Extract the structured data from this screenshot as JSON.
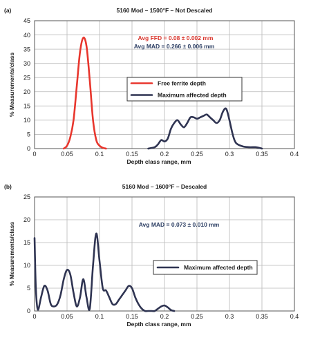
{
  "chart_data": [
    {
      "panel": "(a)",
      "type": "line",
      "title": "5160 Mod – 1500°F – Not Descaled",
      "xlabel": "Depth class range, mm",
      "ylabel": "% Measurements/class",
      "xlim": [
        0,
        0.4
      ],
      "ylim": [
        0,
        45
      ],
      "xticks": [
        "0",
        "0.05",
        "0.1",
        "0.15",
        "0.2",
        "0.25",
        "0.3",
        "0.35",
        "0.4"
      ],
      "yticks": [
        "0",
        "5",
        "10",
        "15",
        "20",
        "25",
        "30",
        "35",
        "40",
        "45"
      ],
      "grid": true,
      "annotations": [
        {
          "text": "Avg FFD = 0.08 ± 0.002 mm",
          "color": "#d9342b"
        },
        {
          "text": "Avg MAD = 0.266 ± 0.006 mm",
          "color": "#2c3e63"
        }
      ],
      "legend_position": "center-right",
      "series": [
        {
          "name": "Free ferrite depth",
          "color": "#e8362d",
          "x": [
            0.045,
            0.05,
            0.055,
            0.06,
            0.065,
            0.07,
            0.075,
            0.08,
            0.085,
            0.09,
            0.095,
            0.1,
            0.105,
            0.11
          ],
          "y": [
            0,
            1,
            4,
            10,
            22,
            34,
            39,
            36,
            24,
            10,
            3,
            1,
            0.3,
            0
          ]
        },
        {
          "name": "Maximum affected depth",
          "color": "#2f3452",
          "x": [
            0.175,
            0.185,
            0.19,
            0.195,
            0.2,
            0.205,
            0.21,
            0.215,
            0.22,
            0.225,
            0.23,
            0.235,
            0.24,
            0.245,
            0.25,
            0.255,
            0.26,
            0.265,
            0.27,
            0.275,
            0.28,
            0.285,
            0.29,
            0.295,
            0.3,
            0.305,
            0.31,
            0.32,
            0.33,
            0.34,
            0.345,
            0.35
          ],
          "y": [
            0,
            0.5,
            1.5,
            3,
            2.5,
            3.5,
            7,
            9,
            10,
            8.5,
            7.5,
            9,
            11,
            11,
            10.5,
            11,
            11.5,
            12,
            11,
            10,
            9,
            10,
            13,
            14,
            10,
            5,
            2,
            0.8,
            0.5,
            0.5,
            0.3,
            0
          ]
        }
      ]
    },
    {
      "panel": "(b)",
      "type": "line",
      "title": "5160 Mod – 1600°F – Descaled",
      "xlabel": "Depth class range, mm",
      "ylabel": "% Measurements/class",
      "xlim": [
        0,
        0.4
      ],
      "ylim": [
        0,
        25
      ],
      "xticks": [
        "0",
        "0.05",
        "0.1",
        "0.15",
        "0.2",
        "0.25",
        "0.3",
        "0.35",
        "0.4"
      ],
      "yticks": [
        "0",
        "5",
        "10",
        "15",
        "20",
        "25"
      ],
      "grid": true,
      "annotations": [
        {
          "text": "Avg MAD = 0.073 ± 0.010 mm",
          "color": "#2c3e63"
        }
      ],
      "legend_position": "center-right",
      "series": [
        {
          "name": "Maximum affected depth",
          "color": "#2f3452",
          "x": [
            0.0,
            0.002,
            0.005,
            0.01,
            0.015,
            0.02,
            0.025,
            0.03,
            0.035,
            0.04,
            0.045,
            0.05,
            0.055,
            0.06,
            0.065,
            0.07,
            0.075,
            0.08,
            0.085,
            0.09,
            0.095,
            0.1,
            0.105,
            0.11,
            0.115,
            0.12,
            0.125,
            0.13,
            0.135,
            0.14,
            0.145,
            0.15,
            0.155,
            0.16,
            0.165,
            0.17,
            0.175,
            0.18,
            0.185,
            0.19,
            0.195,
            0.2,
            0.205,
            0.21,
            0.215
          ],
          "y": [
            16,
            5,
            0.3,
            3,
            5.5,
            4.5,
            1.5,
            1.0,
            1.5,
            3.5,
            7,
            9,
            8,
            4,
            1,
            3,
            7,
            3,
            0.5,
            10,
            17,
            11,
            5,
            4.5,
            3,
            1.5,
            1.5,
            2.5,
            3.5,
            4.5,
            5.5,
            5,
            3,
            1.5,
            0.5,
            0,
            0,
            0,
            0,
            0.5,
            1,
            1.2,
            0.8,
            0.2,
            0
          ]
        }
      ]
    }
  ]
}
